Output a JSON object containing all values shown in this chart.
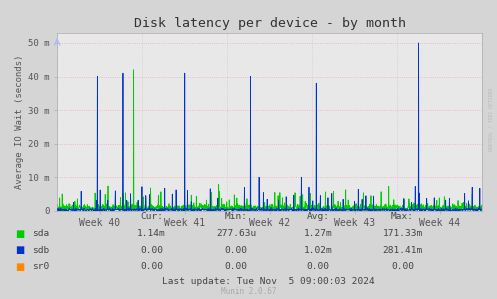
{
  "title": "Disk latency per device - by month",
  "ylabel": "Average IO Wait (seconds)",
  "bg_color": "#d5d5d5",
  "plot_bg_color": "#e8e8e8",
  "sda_color": "#00cc00",
  "sdb_color": "#0033cc",
  "sr0_color": "#ff8800",
  "ytick_labels": [
    "0",
    "10 m",
    "20 m",
    "30 m",
    "40 m",
    "50 m"
  ],
  "ytick_vals": [
    0,
    0.01,
    0.02,
    0.03,
    0.04,
    0.05
  ],
  "ylim_max": 0.053,
  "week_labels": [
    "Week 40",
    "Week 41",
    "Week 42",
    "Week 43",
    "Week 44"
  ],
  "rrdtool_text": "RRDTOOL / TOBI OETIKER",
  "munin_text": "Munin 2.0.67",
  "footer": {
    "headers": [
      "Cur:",
      "Min:",
      "Avg:",
      "Max:"
    ],
    "rows": [
      {
        "label": "sda",
        "color": "#00cc00",
        "vals": [
          "1.14m",
          "277.63u",
          "1.27m",
          "171.33m"
        ]
      },
      {
        "label": "sdb",
        "color": "#0033cc",
        "vals": [
          "0.00",
          "0.00",
          "1.02m",
          "281.41m"
        ]
      },
      {
        "label": "sr0",
        "color": "#ff8800",
        "vals": [
          "0.00",
          "0.00",
          "0.00",
          "0.00"
        ]
      }
    ],
    "last_update": "Last update: Tue Nov  5 09:00:03 2024"
  }
}
